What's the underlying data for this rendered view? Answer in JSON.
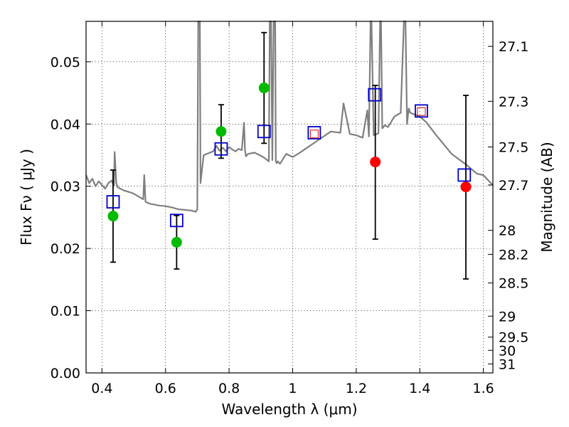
{
  "chart_data": {
    "type": "scatter",
    "xlabel": "Wavelength  λ (μm)",
    "ylabel": "Flux  Fν  ( μJy )",
    "y2label": "Magnitude (AB)",
    "xlim": [
      0.35,
      1.63
    ],
    "ylim": [
      0.0,
      0.0565
    ],
    "grid": true,
    "x_ticks": [
      {
        "value": 0.4,
        "label": "0.4"
      },
      {
        "value": 0.6,
        "label": "0.6"
      },
      {
        "value": 0.8,
        "label": "0.8"
      },
      {
        "value": 1.0,
        "label": "1"
      },
      {
        "value": 1.2,
        "label": "1.2"
      },
      {
        "value": 1.4,
        "label": "1.4"
      },
      {
        "value": 1.6,
        "label": "1.6"
      }
    ],
    "y_ticks": [
      {
        "value": 0.0,
        "label": "0.00"
      },
      {
        "value": 0.01,
        "label": "0.01"
      },
      {
        "value": 0.02,
        "label": "0.02"
      },
      {
        "value": 0.03,
        "label": "0.03"
      },
      {
        "value": 0.04,
        "label": "0.04"
      },
      {
        "value": 0.05,
        "label": "0.05"
      }
    ],
    "y2_ticks": [
      {
        "mag": 27.1,
        "label": "27.1"
      },
      {
        "mag": 27.3,
        "label": "27.3"
      },
      {
        "mag": 27.5,
        "label": "27.5"
      },
      {
        "mag": 27.7,
        "label": "27.7"
      },
      {
        "mag": 28.0,
        "label": "28"
      },
      {
        "mag": 28.2,
        "label": "28.2"
      },
      {
        "mag": 28.5,
        "label": "28.5"
      },
      {
        "mag": 29.0,
        "label": "29"
      },
      {
        "mag": 29.5,
        "label": "29.5"
      },
      {
        "mag": 30.0,
        "label": "30"
      },
      {
        "mag": 31.0,
        "label": "31"
      }
    ],
    "observed_green": {
      "color": "#00bb00",
      "points": [
        {
          "x": 0.435,
          "y": 0.0252,
          "ylo": 0.0178,
          "yhi": 0.0326
        },
        {
          "x": 0.635,
          "y": 0.021,
          "ylo": 0.0167,
          "yhi": 0.0253
        },
        {
          "x": 0.775,
          "y": 0.0388,
          "ylo": 0.0345,
          "yhi": 0.0431
        },
        {
          "x": 0.91,
          "y": 0.0458,
          "ylo": 0.0369,
          "yhi": 0.0547
        }
      ]
    },
    "observed_red": {
      "color": "#ff0000",
      "points": [
        {
          "x": 1.26,
          "y": 0.0339,
          "ylo": 0.0215,
          "yhi": 0.0462
        },
        {
          "x": 1.545,
          "y": 0.0299,
          "ylo": 0.0151,
          "yhi": 0.0446
        }
      ]
    },
    "model_blue_squares": {
      "color": "#0000cc",
      "points": [
        {
          "x": 0.435,
          "y": 0.0275
        },
        {
          "x": 0.635,
          "y": 0.0245
        },
        {
          "x": 0.775,
          "y": 0.036
        },
        {
          "x": 0.91,
          "y": 0.0388
        },
        {
          "x": 1.068,
          "y": 0.0386
        },
        {
          "x": 1.258,
          "y": 0.0447
        },
        {
          "x": 1.405,
          "y": 0.0421
        },
        {
          "x": 1.54,
          "y": 0.0318
        }
      ]
    },
    "model_red_squares": {
      "color": "#dd0000",
      "points": [
        {
          "x": 1.068,
          "y": 0.0384
        },
        {
          "x": 1.405,
          "y": 0.042
        }
      ]
    },
    "spectrum": {
      "color": "#7f7f7f",
      "x": [
        0.35,
        0.36,
        0.37,
        0.38,
        0.39,
        0.4,
        0.41,
        0.42,
        0.43,
        0.438,
        0.44,
        0.445,
        0.45,
        0.47,
        0.49,
        0.5,
        0.52,
        0.53,
        0.533,
        0.537,
        0.55,
        0.58,
        0.6,
        0.62,
        0.64,
        0.66,
        0.68,
        0.695,
        0.7,
        0.703,
        0.705,
        0.708,
        0.71,
        0.72,
        0.75,
        0.76,
        0.77,
        0.78,
        0.79,
        0.8,
        0.81,
        0.82,
        0.83,
        0.84,
        0.847,
        0.85,
        0.853,
        0.86,
        0.88,
        0.9,
        0.91,
        0.925,
        0.928,
        0.93,
        0.932,
        0.936,
        0.94,
        0.945,
        0.947,
        0.95,
        0.953,
        0.96,
        0.98,
        1.0,
        1.02,
        1.04,
        1.06,
        1.08,
        1.1,
        1.12,
        1.15,
        1.16,
        1.18,
        1.2,
        1.22,
        1.235,
        1.24,
        1.245,
        1.248,
        1.255,
        1.27,
        1.275,
        1.278,
        1.282,
        1.29,
        1.3,
        1.32,
        1.34,
        1.35,
        1.355,
        1.36,
        1.365,
        1.37,
        1.38,
        1.4,
        1.42,
        1.45,
        1.5,
        1.55,
        1.58,
        1.6,
        1.62,
        1.63
      ],
      "y": [
        0.0318,
        0.0305,
        0.0312,
        0.03,
        0.0308,
        0.0302,
        0.0296,
        0.0305,
        0.0309,
        0.0301,
        0.0355,
        0.0305,
        0.0298,
        0.0293,
        0.029,
        0.0288,
        0.0282,
        0.0279,
        0.0318,
        0.0275,
        0.0272,
        0.0269,
        0.0268,
        0.0266,
        0.0263,
        0.0262,
        0.0261,
        0.0259,
        0.0263,
        0.0565,
        0.056,
        0.0565,
        0.0305,
        0.035,
        0.0356,
        0.0365,
        0.0357,
        0.0362,
        0.0356,
        0.0363,
        0.0359,
        0.0356,
        0.036,
        0.0358,
        0.0402,
        0.0359,
        0.0348,
        0.0352,
        0.0354,
        0.0349,
        0.0346,
        0.034,
        0.0565,
        0.0565,
        0.0565,
        0.0342,
        0.0565,
        0.0565,
        0.034,
        0.0337,
        0.034,
        0.0336,
        0.0352,
        0.0347,
        0.0353,
        0.036,
        0.0367,
        0.0374,
        0.0381,
        0.0388,
        0.0386,
        0.0433,
        0.0384,
        0.0382,
        0.0378,
        0.0422,
        0.038,
        0.0565,
        0.0565,
        0.0382,
        0.0385,
        0.0565,
        0.0565,
        0.0393,
        0.0398,
        0.0395,
        0.0412,
        0.0418,
        0.0565,
        0.0565,
        0.04,
        0.0425,
        0.0418,
        0.0416,
        0.0412,
        0.0403,
        0.0383,
        0.0352,
        0.0333,
        0.032,
        0.0318,
        0.0307,
        0.0302
      ]
    }
  }
}
